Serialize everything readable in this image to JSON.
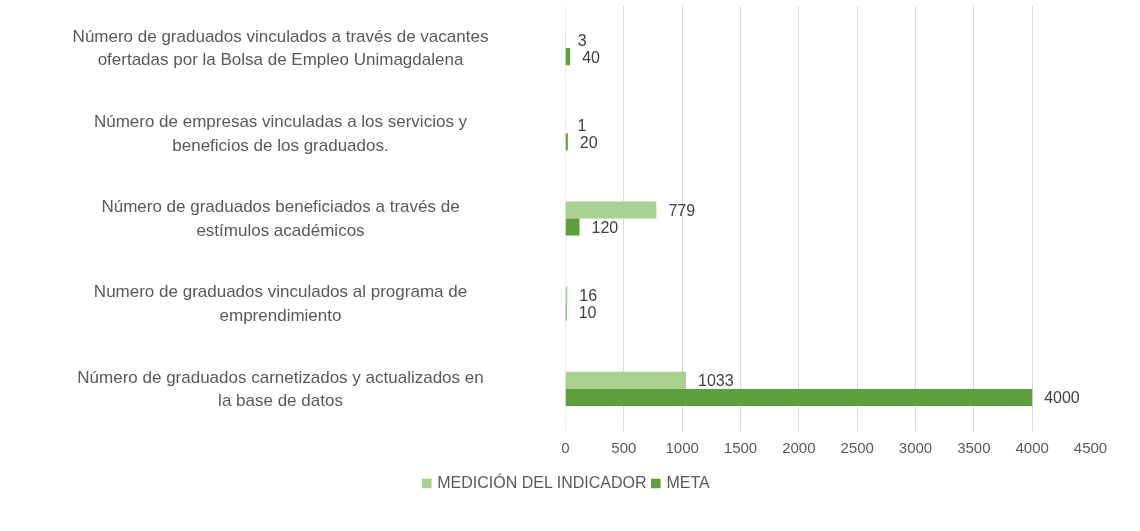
{
  "chart_data": {
    "type": "bar",
    "orientation": "horizontal",
    "categories": [
      "Número de graduados vinculados a través de vacantes ofertadas por la Bolsa de Empleo Unimagdalena",
      "Número de empresas vinculadas a los servicios y beneficios de los graduados.",
      "Número de graduados beneficiados a través de estímulos académicos",
      "Numero de graduados vinculados al programa de emprendimiento",
      "Número de graduados carnetizados y actualizados en la base de datos"
    ],
    "series": [
      {
        "name": "MEDICIÓN DEL INDICADOR",
        "color": "#a9d08e",
        "values": [
          3,
          1,
          779,
          16,
          1033
        ]
      },
      {
        "name": "META",
        "color": "#5f9e3c",
        "values": [
          40,
          20,
          120,
          10,
          4000
        ]
      }
    ],
    "xlim": [
      0,
      4500
    ],
    "xticks": [
      0,
      500,
      1000,
      1500,
      2000,
      2500,
      3000,
      3500,
      4000,
      4500
    ],
    "grid": "x",
    "legend": "bottom",
    "data_labels": true
  }
}
